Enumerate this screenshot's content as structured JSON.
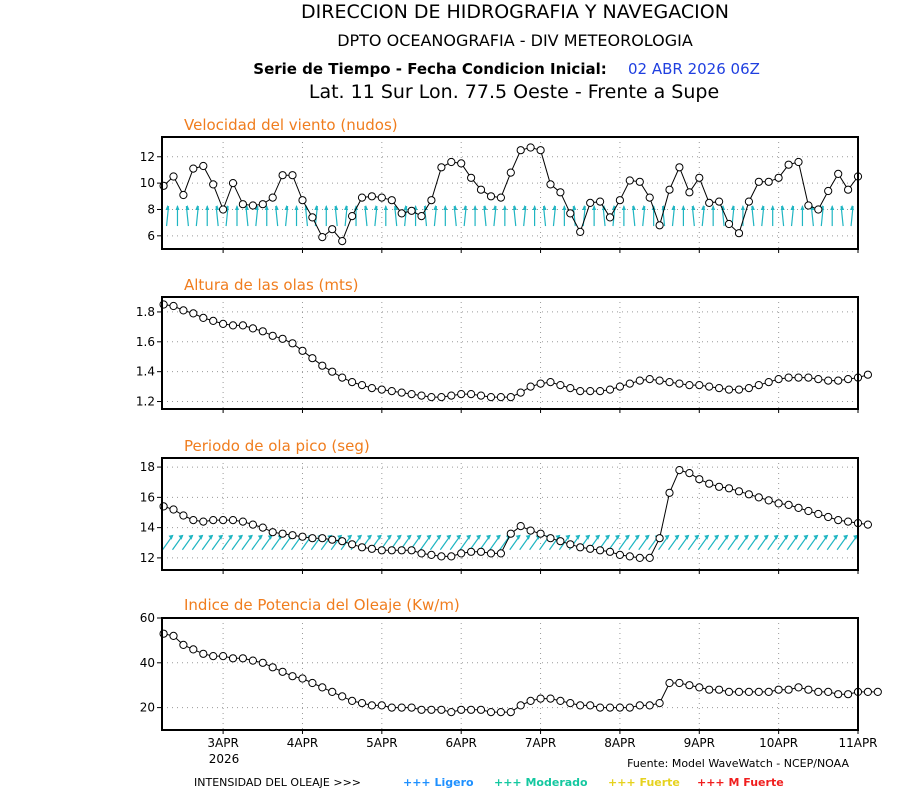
{
  "header": {
    "line1": "DIRECCION DE HIDROGRAFIA Y NAVEGACION",
    "line2": "DPTO OCEANOGRAFIA - DIV METEOROLOGIA",
    "line3_prefix": "Serie de Tiempo - Fecha Condicion Inicial:",
    "line3_date": "02 ABR 2026 06Z",
    "line4": "Lat. 11 Sur  Lon. 77.5 Oeste - Frente a Supe"
  },
  "colors": {
    "panel_title": "#f07d1e",
    "date_blue": "#1f3fe0",
    "arrow_cyan": "#1fb5c2",
    "ligero": "#1e90ff",
    "moderado": "#14c8a0",
    "fuerte": "#e6d21e",
    "mfuerte": "#f01e1e"
  },
  "x_axis": {
    "ticks": [
      1,
      2,
      3,
      4,
      5,
      6,
      7,
      8,
      9
    ],
    "tick_labels": [
      "3APR",
      "4APR",
      "5APR",
      "6APR",
      "7APR",
      "8APR",
      "9APR",
      "10APR",
      "11APR"
    ],
    "year_label": "2026",
    "range": [
      0.23,
      9.0
    ]
  },
  "footer": {
    "source": "Fuente: Model WaveWatch - NCEP/NOAA",
    "legend_prefix": "INTENSIDAD DEL OLEAJE >>>",
    "legend_items": [
      {
        "label": "+++ Ligero",
        "color_key": "ligero"
      },
      {
        "label": "+++ Moderado",
        "color_key": "moderado"
      },
      {
        "label": "+++ Fuerte",
        "color_key": "fuerte"
      },
      {
        "label": "+++ M Fuerte",
        "color_key": "mfuerte"
      }
    ]
  },
  "chart_data": [
    {
      "type": "line",
      "title": "Velocidad del viento (nudos)",
      "ylim": [
        5,
        13.5
      ],
      "yticks": [
        6,
        8,
        10,
        12
      ],
      "grid": true,
      "x_start": 0.25,
      "x_step": 0.125,
      "values": [
        9.8,
        10.5,
        9.1,
        11.1,
        11.3,
        9.9,
        8.0,
        10.0,
        8.4,
        8.3,
        8.4,
        8.9,
        10.6,
        10.6,
        8.7,
        7.4,
        5.9,
        6.5,
        5.6,
        7.5,
        8.9,
        9.0,
        8.9,
        8.7,
        7.7,
        7.9,
        7.5,
        8.7,
        11.2,
        11.6,
        11.5,
        10.4,
        9.5,
        9.0,
        8.9,
        10.8,
        12.5,
        12.7,
        12.5,
        9.9,
        9.3,
        7.7,
        6.3,
        8.5,
        8.6,
        7.4,
        8.7,
        10.2,
        10.1,
        8.9,
        6.8,
        9.5,
        11.2,
        9.3,
        10.4,
        8.5,
        8.6,
        6.9,
        6.2,
        8.6,
        10.1,
        10.1,
        10.4,
        11.4,
        11.6,
        8.3,
        8.0,
        9.4,
        10.7,
        9.5,
        10.5
      ],
      "arrows": {
        "y": 7.5,
        "x_start": 0.3,
        "x_step": 0.125,
        "count": 70
      }
    },
    {
      "type": "line",
      "title": "Altura de las olas (mts)",
      "ylim": [
        1.15,
        1.9
      ],
      "yticks": [
        1.2,
        1.4,
        1.6,
        1.8
      ],
      "grid": true,
      "x_start": 0.25,
      "x_step": 0.125,
      "values": [
        1.85,
        1.84,
        1.81,
        1.79,
        1.76,
        1.74,
        1.72,
        1.71,
        1.71,
        1.69,
        1.67,
        1.64,
        1.62,
        1.59,
        1.54,
        1.49,
        1.44,
        1.4,
        1.36,
        1.33,
        1.31,
        1.29,
        1.28,
        1.27,
        1.26,
        1.25,
        1.24,
        1.23,
        1.23,
        1.24,
        1.25,
        1.25,
        1.24,
        1.23,
        1.23,
        1.23,
        1.26,
        1.3,
        1.32,
        1.33,
        1.31,
        1.29,
        1.27,
        1.27,
        1.27,
        1.28,
        1.3,
        1.32,
        1.34,
        1.35,
        1.34,
        1.33,
        1.32,
        1.31,
        1.31,
        1.3,
        1.29,
        1.28,
        1.28,
        1.29,
        1.31,
        1.33,
        1.35,
        1.36,
        1.36,
        1.36,
        1.35,
        1.34,
        1.34,
        1.35,
        1.36,
        1.38
      ]
    },
    {
      "type": "line",
      "title": "Periodo de ola pico (seg)",
      "ylim": [
        11.2,
        18.6
      ],
      "yticks": [
        12,
        14,
        16,
        18
      ],
      "grid": true,
      "x_start": 0.25,
      "x_step": 0.125,
      "values": [
        15.4,
        15.2,
        14.8,
        14.5,
        14.4,
        14.5,
        14.5,
        14.5,
        14.4,
        14.2,
        14.0,
        13.7,
        13.6,
        13.5,
        13.4,
        13.3,
        13.3,
        13.2,
        13.1,
        12.9,
        12.7,
        12.6,
        12.5,
        12.5,
        12.5,
        12.5,
        12.3,
        12.2,
        12.1,
        12.1,
        12.3,
        12.4,
        12.4,
        12.3,
        12.3,
        13.6,
        14.1,
        13.8,
        13.6,
        13.3,
        13.1,
        12.9,
        12.7,
        12.6,
        12.5,
        12.4,
        12.2,
        12.1,
        12.0,
        12.0,
        13.3,
        16.3,
        17.8,
        17.6,
        17.2,
        16.9,
        16.7,
        16.6,
        16.4,
        16.2,
        16.0,
        15.8,
        15.6,
        15.5,
        15.3,
        15.1,
        14.9,
        14.7,
        14.5,
        14.4,
        14.3,
        14.2
      ],
      "arrows": {
        "y": 13.0,
        "x_start": 0.3,
        "x_step": 0.125,
        "count": 70
      }
    },
    {
      "type": "line",
      "title": "Indice de Potencia del Oleaje (Kw/m)",
      "ylim": [
        10,
        60
      ],
      "yticks": [
        20,
        40,
        60
      ],
      "grid": true,
      "x_start": 0.25,
      "x_step": 0.125,
      "values": [
        53,
        52,
        48,
        46,
        44,
        43,
        43,
        42,
        42,
        41,
        40,
        38,
        36,
        34,
        33,
        31,
        29,
        27,
        25,
        23,
        22,
        21,
        21,
        20,
        20,
        20,
        19,
        19,
        19,
        18,
        19,
        19,
        19,
        18,
        18,
        18,
        21,
        23,
        24,
        24,
        23,
        22,
        21,
        21,
        20,
        20,
        20,
        20,
        21,
        21,
        22,
        31,
        31,
        30,
        29,
        28,
        28,
        27,
        27,
        27,
        27,
        27,
        28,
        28,
        29,
        28,
        27,
        27,
        26,
        26,
        27,
        27,
        27
      ]
    }
  ]
}
